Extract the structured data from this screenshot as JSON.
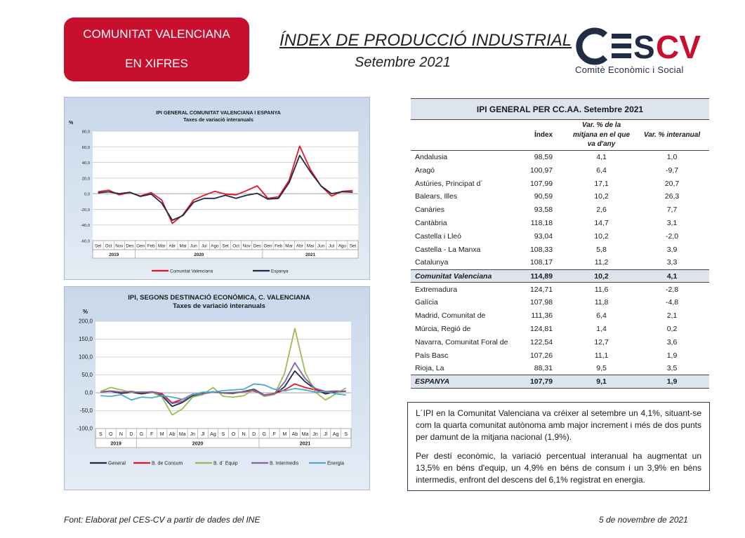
{
  "header": {
    "badge_line1": "COMUNITAT VALENCIANA",
    "badge_line2": "EN XIFRES",
    "title": "ÍNDEX DE PRODUCCIÓ INDUSTRIAL",
    "subtitle": "Setembre 2021",
    "logo_text": "CESCV",
    "logo_subtitle": "Comitè Econòmic i Social"
  },
  "colors": {
    "brand_red": "#c8102e",
    "navy": "#1f2c44",
    "series_red": "#e0182d",
    "series_green": "#9bbb59",
    "series_purple": "#8064a2",
    "series_cyan": "#4bacc6"
  },
  "chart_data": [
    {
      "type": "line",
      "title": "IPI GENERAL COMUNITAT VALENCIANA I ESPANYA",
      "subtitle": "Taxes de variació interanuals",
      "ylabel": "%",
      "ylim": [
        -60,
        80
      ],
      "yticks": [
        "80,0",
        "60,0",
        "40,0",
        "20,0",
        "0,0",
        "-20,0",
        "-40,0",
        "-60,0"
      ],
      "categories": [
        "Set",
        "Oct",
        "Nov",
        "Des",
        "Gen",
        "Feb",
        "Mar",
        "Abr",
        "Mai",
        "Jun",
        "Jul",
        "Ago",
        "Set",
        "Oct",
        "Nov",
        "Des",
        "Gen",
        "Feb",
        "Mar",
        "Abr",
        "Mai",
        "Jun",
        "Jul",
        "Ago",
        "Set"
      ],
      "year_labels": [
        {
          "label": "2019",
          "from": 0,
          "to": 3
        },
        {
          "label": "2020",
          "from": 4,
          "to": 15
        },
        {
          "label": "2021",
          "from": 16,
          "to": 24
        }
      ],
      "grid": true,
      "legend": "bottom",
      "series": [
        {
          "name": "Comunitat Valenciana",
          "color": "#e0182d",
          "values": [
            2.5,
            4.5,
            -1.5,
            1.5,
            -3,
            1.5,
            -8,
            -38,
            -27,
            -8,
            -2,
            3,
            -0.5,
            -1.5,
            4,
            10,
            -6,
            -4,
            17,
            61,
            31,
            10,
            -3,
            3,
            4.1
          ]
        },
        {
          "name": "Espanya",
          "color": "#1f2c44",
          "values": [
            1,
            2.5,
            0,
            1.8,
            -3.5,
            -0.5,
            -12,
            -34,
            -28,
            -11,
            -6,
            -6,
            -2,
            -6,
            -2,
            0.5,
            -7,
            -6,
            14,
            49,
            28,
            10,
            0,
            2.5,
            1.9
          ]
        }
      ]
    },
    {
      "type": "line",
      "title": "IPI, SEGONS DESTINACIÓ ECONÒMICA, C. VALENCIANA",
      "subtitle": "Taxes de variació interanuals",
      "ylabel": "%",
      "ylim": [
        -100,
        200
      ],
      "yticks": [
        "200,0",
        "150,0",
        "100,0",
        "50,0",
        "0,0",
        "-50,0",
        "-100,0"
      ],
      "categories": [
        "S",
        "O",
        "N",
        "D",
        "G",
        "F",
        "M",
        "Ab",
        "Ma",
        "Jn",
        "Jl",
        "Ag",
        "S",
        "O",
        "N",
        "D",
        "G",
        "F",
        "M",
        "Ab",
        "Ma",
        "Jn",
        "Jl",
        "Ag",
        "S"
      ],
      "year_labels": [
        {
          "label": "2019",
          "from": 0,
          "to": 3
        },
        {
          "label": "2020",
          "from": 4,
          "to": 15
        },
        {
          "label": "2021",
          "from": 16,
          "to": 24
        }
      ],
      "grid": true,
      "legend": "bottom",
      "series": [
        {
          "name": "General",
          "color": "#1f2c44",
          "values": [
            2.5,
            4.5,
            -1.5,
            1.5,
            -3,
            1.5,
            -8,
            -38,
            -27,
            -8,
            -2,
            3,
            -0.5,
            -1.5,
            4,
            10,
            -6,
            -4,
            17,
            61,
            31,
            10,
            -3,
            3,
            4.1
          ]
        },
        {
          "name": "B. de Consum",
          "color": "#e0182d",
          "values": [
            3,
            5,
            2,
            4,
            0,
            3,
            -2,
            -28,
            -18,
            -4,
            -2,
            2,
            0,
            0,
            3,
            5,
            -6,
            -2,
            8,
            25,
            15,
            8,
            2,
            4,
            4.9
          ]
        },
        {
          "name": "B. d´ Equip",
          "color": "#9bbb59",
          "values": [
            4,
            15,
            8,
            1,
            3,
            2,
            -12,
            -62,
            -45,
            -12,
            -5,
            15,
            -10,
            -12,
            -8,
            8,
            -10,
            -5,
            55,
            180,
            58,
            2,
            -20,
            -3,
            13.5
          ]
        },
        {
          "name": "B. Intermedis",
          "color": "#8064a2",
          "values": [
            2,
            5,
            2,
            3,
            1,
            3,
            -5,
            -30,
            -24,
            -5,
            -3,
            2,
            0,
            1,
            3,
            8,
            -7,
            -3,
            30,
            84,
            40,
            12,
            4,
            5,
            3.9
          ]
        },
        {
          "name": "Energia",
          "color": "#4bacc6",
          "values": [
            -8,
            -10,
            -5,
            -20,
            -12,
            -14,
            -8,
            -12,
            -18,
            -5,
            2,
            2,
            6,
            8,
            10,
            25,
            22,
            10,
            5,
            12,
            8,
            2,
            4,
            -3,
            -6.1
          ]
        }
      ]
    }
  ],
  "table": {
    "title": "IPI GENERAL PER CC.AA. Setembre 2021",
    "col_index": "Índex",
    "col_mean": "Var. % de la mitjana en el que va d'any",
    "col_annual": "Var. % interanual",
    "rows": [
      {
        "name": "Andalusia",
        "index": "98,59",
        "mean": "4,1",
        "annual": "1,0"
      },
      {
        "name": "Aragó",
        "index": "100,97",
        "mean": "6,4",
        "annual": "-9,7"
      },
      {
        "name": "Astúries, Principat d´",
        "index": "107,99",
        "mean": "17,1",
        "annual": "20,7"
      },
      {
        "name": "Balears, Illes",
        "index": "90,59",
        "mean": "10,2",
        "annual": "26,3"
      },
      {
        "name": "Canàries",
        "index": "93,58",
        "mean": "2,6",
        "annual": "7,7"
      },
      {
        "name": "Cantàbria",
        "index": "118,18",
        "mean": "14,7",
        "annual": "3,1"
      },
      {
        "name": "Castella i Lleó",
        "index": "93,04",
        "mean": "10,2",
        "annual": "-2,0"
      },
      {
        "name": "Castella - La Manxa",
        "index": "108,33",
        "mean": "5,8",
        "annual": "3,9"
      },
      {
        "name": "Catalunya",
        "index": "108,17",
        "mean": "11,2",
        "annual": "3,3"
      },
      {
        "name": "Comunitat Valenciana",
        "index": "114,89",
        "mean": "10,2",
        "annual": "4,1",
        "highlight": true
      },
      {
        "name": "Extremadura",
        "index": "124,71",
        "mean": "11,6",
        "annual": "-2,8"
      },
      {
        "name": "Galícia",
        "index": "107,98",
        "mean": "11,8",
        "annual": "-4,8"
      },
      {
        "name": "Madrid, Comunitat de",
        "index": "111,36",
        "mean": "6,4",
        "annual": "2,1"
      },
      {
        "name": "Múrcia, Regió de",
        "index": "124,81",
        "mean": "1,4",
        "annual": "0,2"
      },
      {
        "name": "Navarra, Comunitat Foral de",
        "index": "122,54",
        "mean": "12,7",
        "annual": "3,6"
      },
      {
        "name": "País Basc",
        "index": "107,26",
        "mean": "11,1",
        "annual": "1,9"
      },
      {
        "name": "Rioja, La",
        "index": "88,31",
        "mean": "9,5",
        "annual": "3,5"
      },
      {
        "name": "ESPANYA",
        "index": "107,79",
        "mean": "9,1",
        "annual": "1,9",
        "highlight": true
      }
    ]
  },
  "notes": {
    "p1": "L´IPI en la Comunitat Valenciana va créixer al setembre un 4,1%, situant-se com la quarta comunitat autònoma amb major increment i més de dos punts per damunt de la mitjana nacional (1,9%).",
    "p2": "Per destí econòmic, la variació percentual interanual ha augmentat un 13,5% en béns d'equip, un 4,9% en béns de consum i un 3,9% en béns intermedis, enfront del descens del 6,1% registrat en energia."
  },
  "footer": {
    "source": "Font: Elaborat pel CES-CV a partir de dades del INE",
    "date": "5 de novembre de 2021"
  }
}
